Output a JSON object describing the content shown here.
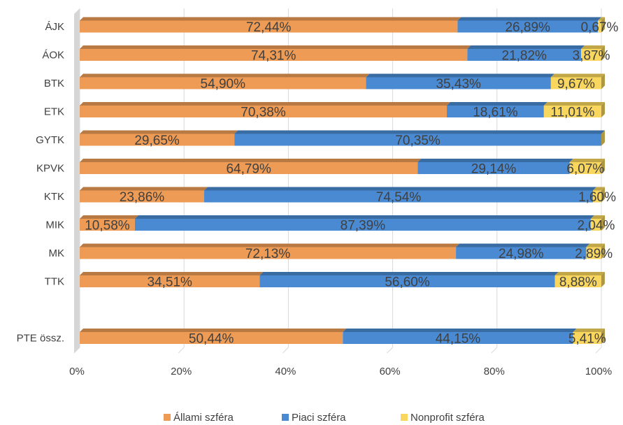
{
  "chart_data": {
    "type": "bar",
    "orientation": "horizontal",
    "stacked": "100%",
    "categories": [
      "ÁJK",
      "ÁOK",
      "BTK",
      "ETK",
      "GYTK",
      "KPVK",
      "KTK",
      "MIK",
      "MK",
      "TTK",
      "",
      "PTE össz."
    ],
    "series": [
      {
        "name": "Állami szféra",
        "color": "#ED9B55",
        "values": [
          72.44,
          74.31,
          54.9,
          70.38,
          29.65,
          64.79,
          23.86,
          10.58,
          72.13,
          34.51,
          null,
          50.44
        ],
        "labels": [
          "72,44%",
          "74,31%",
          "54,90%",
          "70,38%",
          "29,65%",
          "64,79%",
          "23,86%",
          "10,58%",
          "72,13%",
          "34,51%",
          "",
          "50,44%"
        ]
      },
      {
        "name": "Piaci szféra",
        "color": "#4A8AD2",
        "values": [
          26.89,
          21.82,
          35.43,
          18.61,
          70.35,
          29.14,
          74.54,
          87.39,
          24.98,
          56.6,
          null,
          44.15
        ],
        "labels": [
          "26,89%",
          "21,82%",
          "35,43%",
          "18,61%",
          "70,35%",
          "29,14%",
          "74,54%",
          "87,39%",
          "24,98%",
          "56,60%",
          "",
          "44,15%"
        ]
      },
      {
        "name": "Nonprofit szféra",
        "color": "#F9D65E",
        "values": [
          0.67,
          3.87,
          9.67,
          11.01,
          0.0,
          6.07,
          1.6,
          2.04,
          2.89,
          8.88,
          null,
          5.41
        ],
        "labels": [
          "0,67%",
          "3,87%",
          "9,67%",
          "11,01%",
          "",
          "6,07%",
          "1,60%",
          "2,04%",
          "2,89%",
          "8,88%",
          "",
          "5,41%"
        ]
      }
    ],
    "xticks": [
      "0%",
      "20%",
      "40%",
      "60%",
      "80%",
      "100%"
    ],
    "xlim": [
      0,
      100
    ],
    "xlabel": "",
    "ylabel": "",
    "grid": "vertical",
    "legend": "bottom"
  }
}
